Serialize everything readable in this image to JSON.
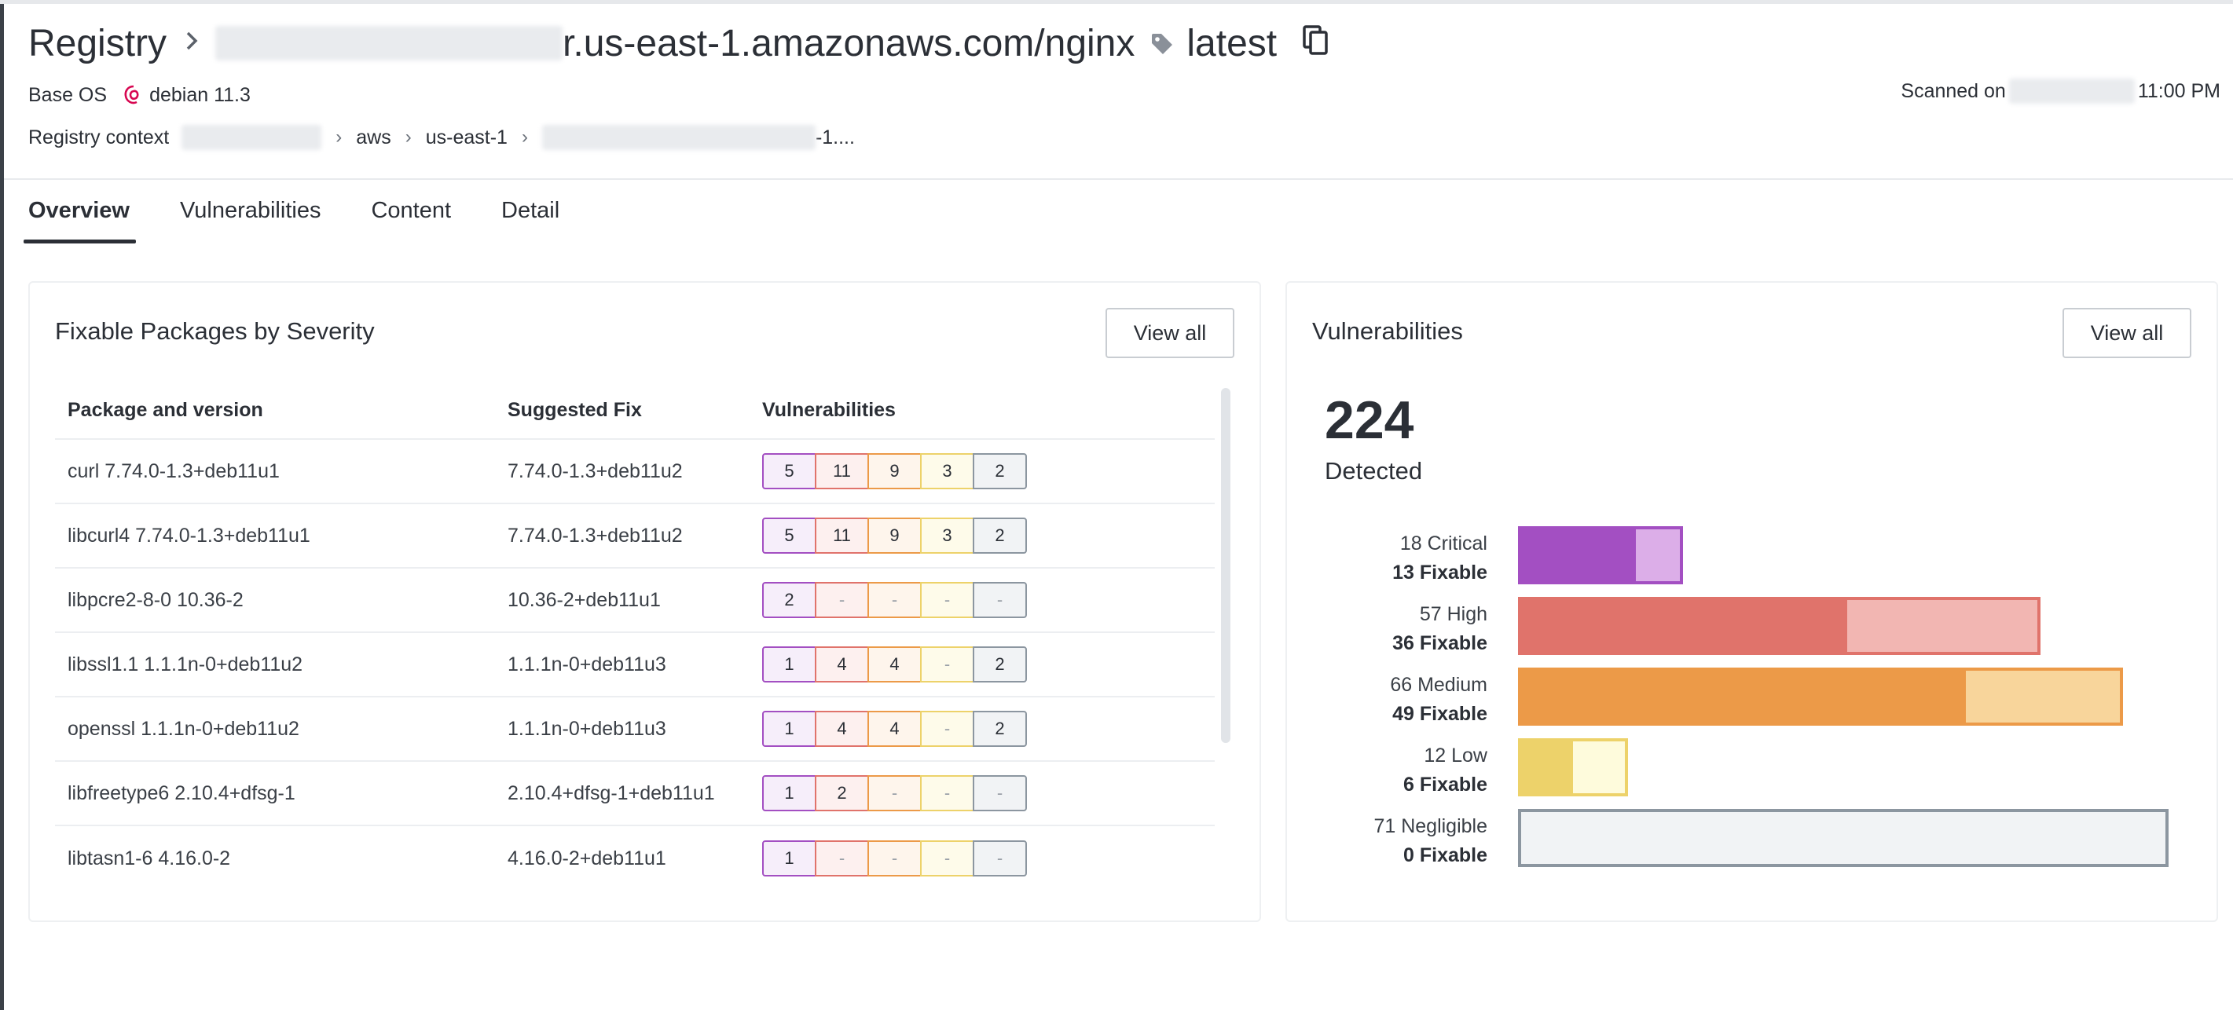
{
  "header": {
    "registry_label": "Registry",
    "repo_suffix": "r.us-east-1.amazonaws.com/nginx",
    "tag": "latest",
    "base_os_label": "Base OS",
    "base_os_value": "debian 11.3",
    "registry_context_label": "Registry context",
    "context_crumbs": [
      "aws",
      "us-east-1"
    ],
    "context_tail": "-1....",
    "scanned_label": "Scanned on",
    "scanned_time": "11:00 PM"
  },
  "tabs": [
    {
      "label": "Overview",
      "active": true
    },
    {
      "label": "Vulnerabilities",
      "active": false
    },
    {
      "label": "Content",
      "active": false
    },
    {
      "label": "Detail",
      "active": false
    }
  ],
  "fixable_packages": {
    "title": "Fixable Packages by Severity",
    "view_all_label": "View all",
    "columns": [
      "Package and version",
      "Suggested Fix",
      "Vulnerabilities"
    ],
    "rows": [
      {
        "package": "curl 7.74.0-1.3+deb11u1",
        "fix": "7.74.0-1.3+deb11u2",
        "counts": [
          "5",
          "11",
          "9",
          "3",
          "2"
        ]
      },
      {
        "package": "libcurl4 7.74.0-1.3+deb11u1",
        "fix": "7.74.0-1.3+deb11u2",
        "counts": [
          "5",
          "11",
          "9",
          "3",
          "2"
        ]
      },
      {
        "package": "libpcre2-8-0 10.36-2",
        "fix": "10.36-2+deb11u1",
        "counts": [
          "2",
          "-",
          "-",
          "-",
          "-"
        ]
      },
      {
        "package": "libssl1.1 1.1.1n-0+deb11u2",
        "fix": "1.1.1n-0+deb11u3",
        "counts": [
          "1",
          "4",
          "4",
          "-",
          "2"
        ]
      },
      {
        "package": "openssl 1.1.1n-0+deb11u2",
        "fix": "1.1.1n-0+deb11u3",
        "counts": [
          "1",
          "4",
          "4",
          "-",
          "2"
        ]
      },
      {
        "package": "libfreetype6 2.10.4+dfsg-1",
        "fix": "2.10.4+dfsg-1+deb11u1",
        "counts": [
          "1",
          "2",
          "-",
          "-",
          "-"
        ]
      },
      {
        "package": "libtasn1-6 4.16.0-2",
        "fix": "4.16.0-2+deb11u1",
        "counts": [
          "1",
          "-",
          "-",
          "-",
          "-"
        ]
      }
    ]
  },
  "vulnerabilities": {
    "title": "Vulnerabilities",
    "view_all_label": "View all",
    "total": "224",
    "total_label": "Detected",
    "severities": [
      {
        "count_label": "18 Critical",
        "fixable_label": "13 Fixable",
        "total": 18,
        "fixable": 13,
        "color": "#a34fc2",
        "light": "#dcaee8"
      },
      {
        "count_label": "57 High",
        "fixable_label": "36 Fixable",
        "total": 57,
        "fixable": 36,
        "color": "#e0736b",
        "light": "#f2b6b2"
      },
      {
        "count_label": "66 Medium",
        "fixable_label": "49 Fixable",
        "total": 66,
        "fixable": 49,
        "color": "#ec9a48",
        "light": "#f8d59b"
      },
      {
        "count_label": "12 Low",
        "fixable_label": "6 Fixable",
        "total": 12,
        "fixable": 6,
        "color": "#edd26a",
        "light": "#fefbdc"
      },
      {
        "count_label": "71 Negligible",
        "fixable_label": "0 Fixable",
        "total": 71,
        "fixable": 0,
        "color": "#8c96a0",
        "light": "#f1f3f5"
      }
    ]
  }
}
